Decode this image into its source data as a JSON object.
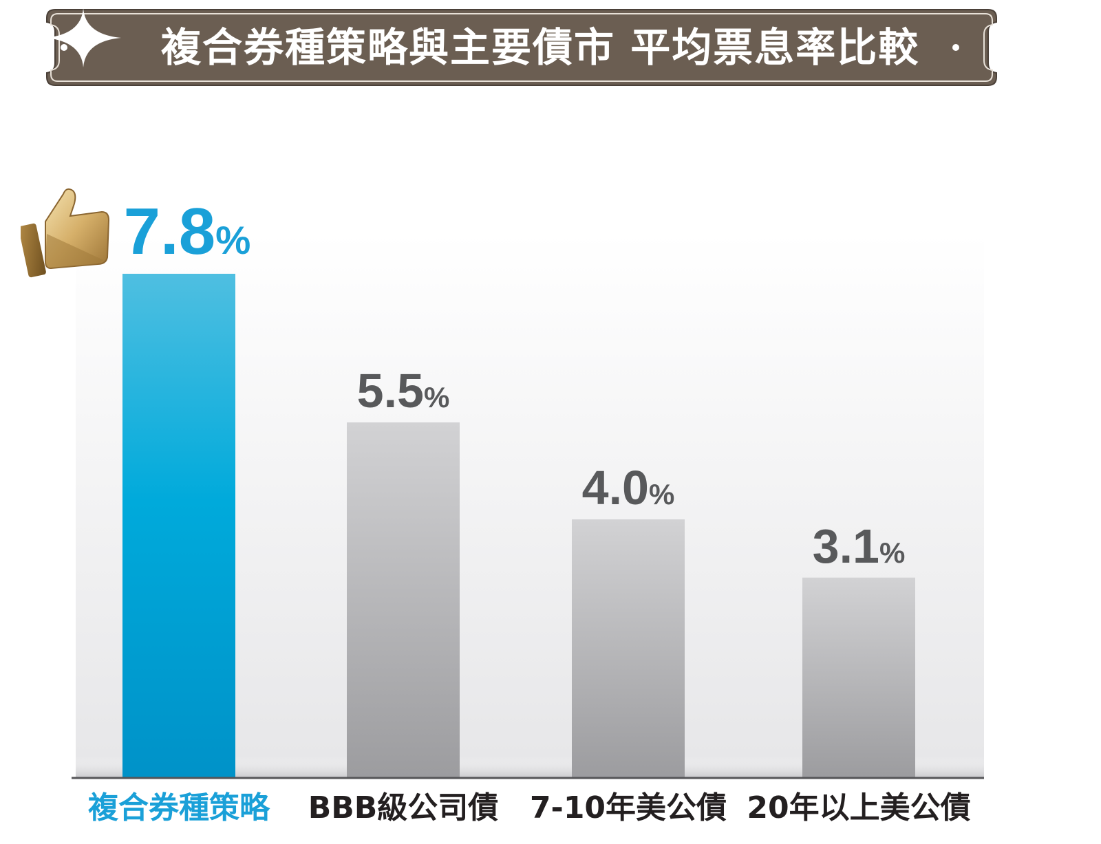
{
  "title": "複合券種策略與主要債市 平均票息率比較",
  "chart_data": {
    "type": "bar",
    "categories": [
      "複合券種策略",
      "BBB級公司債",
      "7-10年美公債",
      "20年以上美公債"
    ],
    "values": [
      7.8,
      5.5,
      4.0,
      3.1
    ],
    "value_labels": [
      {
        "num": "7.8",
        "unit": "%"
      },
      {
        "num": "5.5",
        "unit": "%"
      },
      {
        "num": "4.0",
        "unit": "%"
      },
      {
        "num": "3.1",
        "unit": "%"
      }
    ],
    "unit": "%",
    "highlight_index": 0,
    "ylim": [
      0,
      7.8
    ],
    "grid": false,
    "legend": "none"
  },
  "colors": {
    "banner": "#6b5e52",
    "highlight_bar": "#00a6d6",
    "other_bar": "#b1b1b4",
    "highlight_text": "#1aa0d8",
    "value_text": "#58595b",
    "category_text": "#231f20",
    "highlight_category_text": "#1aa0d8",
    "thumb_gold": "#c9a25a"
  },
  "icons": {
    "thumb": "thumbs-up-icon",
    "star": "sparkle-icon"
  }
}
